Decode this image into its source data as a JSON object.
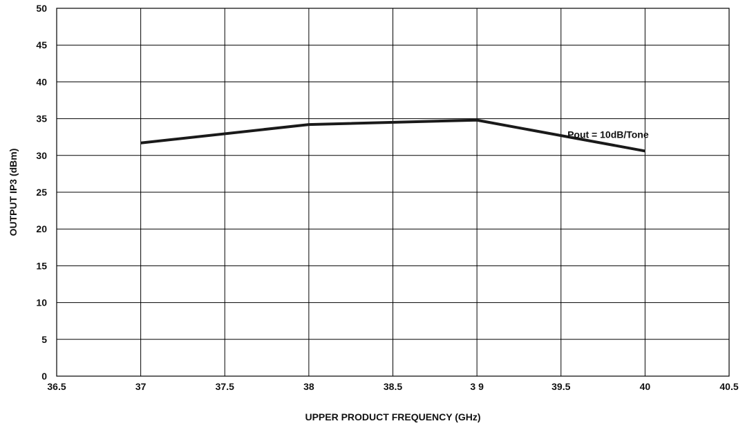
{
  "chart_data": {
    "type": "line",
    "xlabel": "UPPER PRODUCT FREQUENCY (GHz)",
    "ylabel": "OUTPUT IP3 (dBm)",
    "xlim": [
      36.5,
      40.5
    ],
    "ylim": [
      0,
      50
    ],
    "x_ticks": [
      36.5,
      37,
      37.5,
      38,
      38.5,
      39,
      39.5,
      40,
      40.5
    ],
    "x_tick_labels": [
      "36.5",
      "37",
      "37.5",
      "38",
      "38.5",
      "3 9",
      "39.5",
      "40",
      "40.5"
    ],
    "y_ticks": [
      0,
      5,
      10,
      15,
      20,
      25,
      30,
      35,
      40,
      45,
      50
    ],
    "y_tick_labels": [
      "0",
      "5",
      "10",
      "15",
      "20",
      "25",
      "30",
      "35",
      "40",
      "45",
      "50"
    ],
    "grid": true,
    "series": [
      {
        "x": [
          37,
          38,
          39,
          40
        ],
        "values": [
          31.7,
          34.2,
          34.8,
          30.6
        ],
        "color": "#1a1a1a"
      }
    ],
    "annotations": [
      {
        "text": "Pout = 10dB/Tone",
        "x": 39.78,
        "y": 32.4
      }
    ]
  }
}
